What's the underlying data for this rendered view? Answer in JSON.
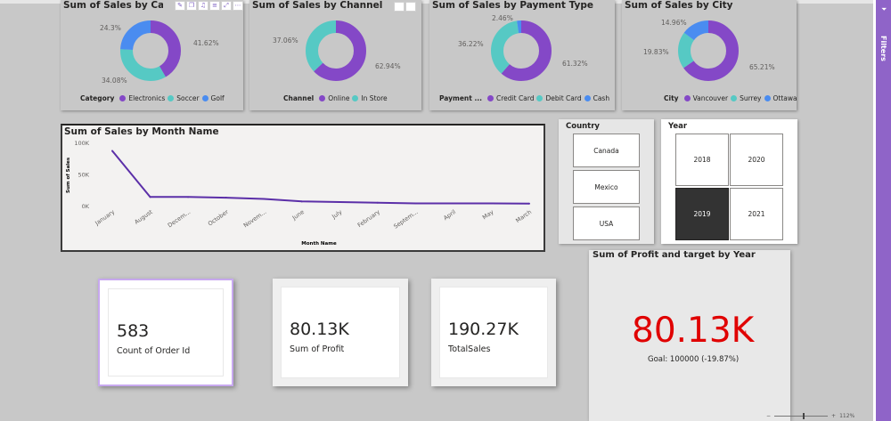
{
  "colors": {
    "purple": "#8448c7",
    "teal": "#56c9c4",
    "blue": "#4a8cf0",
    "line": "#5b2fa8",
    "red": "#e00000"
  },
  "toolbar_icons": [
    "pin-icon",
    "copy-icon",
    "bell-icon",
    "filter-icon",
    "focus-icon",
    "more-icon"
  ],
  "toolbar_glyphs": [
    "✎",
    "❐",
    "♫",
    "≡",
    "⤢",
    "⋯"
  ],
  "donuts": [
    {
      "title": "Sum of Sales by Category",
      "legend_title": "Category",
      "slices": [
        {
          "name": "Electronics",
          "pct": "41.62%",
          "value": 41.62,
          "color": "#8448c7"
        },
        {
          "name": "Soccer",
          "pct": "34.08%",
          "value": 34.08,
          "color": "#56c9c4"
        },
        {
          "name": "Golf",
          "pct": "24.3%",
          "value": 24.3,
          "color": "#4a8cf0"
        }
      ]
    },
    {
      "title": "Sum of Sales by Channel",
      "legend_title": "Channel",
      "slices": [
        {
          "name": "Online",
          "pct": "62.94%",
          "value": 62.94,
          "color": "#8448c7"
        },
        {
          "name": "In Store",
          "pct": "37.06%",
          "value": 37.06,
          "color": "#56c9c4"
        }
      ]
    },
    {
      "title": "Sum of Sales by Payment Type",
      "legend_title": "Payment ...",
      "slices": [
        {
          "name": "Credit Card",
          "pct": "61.32%",
          "value": 61.32,
          "color": "#8448c7"
        },
        {
          "name": "Debit Card",
          "pct": "36.22%",
          "value": 36.22,
          "color": "#56c9c4"
        },
        {
          "name": "Cash",
          "pct": "2.46%",
          "value": 2.46,
          "color": "#4a8cf0"
        }
      ]
    },
    {
      "title": "Sum of Sales by City",
      "legend_title": "City",
      "slices": [
        {
          "name": "Vancouver",
          "pct": "65.21%",
          "value": 65.21,
          "color": "#8448c7"
        },
        {
          "name": "Surrey",
          "pct": "19.83%",
          "value": 19.83,
          "color": "#56c9c4"
        },
        {
          "name": "Ottawa",
          "pct": "14.96%",
          "value": 14.96,
          "color": "#4a8cf0"
        }
      ]
    }
  ],
  "chart_data": {
    "type": "line",
    "title": "Sum of Sales by Month Name",
    "xlabel": "Month Name",
    "ylabel": "Sum of Sales",
    "ylim": [
      0,
      100000
    ],
    "yticks": [
      "0K",
      "50K",
      "100K"
    ],
    "categories": [
      "January",
      "August",
      "Decem...",
      "October",
      "Novem...",
      "June",
      "July",
      "February",
      "Septem...",
      "April",
      "May",
      "March"
    ],
    "values": [
      88000,
      15000,
      15000,
      14000,
      12000,
      8000,
      7000,
      6000,
      5000,
      5000,
      5000,
      4500
    ],
    "grid": false
  },
  "country_slicer": {
    "title": "Country",
    "options": [
      "Canada",
      "Mexico",
      "USA"
    ]
  },
  "year_slicer": {
    "title": "Year",
    "options": [
      "2018",
      "2020",
      "2019",
      "2021"
    ],
    "selected": "2019"
  },
  "kpis": [
    {
      "value": "583",
      "label": "Count of Order Id"
    },
    {
      "value": "80.13K",
      "label": "Sum of Profit"
    },
    {
      "value": "190.27K",
      "label": "TotalSales"
    }
  ],
  "gauge": {
    "title": "Sum of Profit and target by Year",
    "value": "80.13K",
    "goal": "Goal: 100000 (-19.87%)"
  },
  "filters_label": "Filters",
  "status": {
    "zoom": "112%"
  }
}
